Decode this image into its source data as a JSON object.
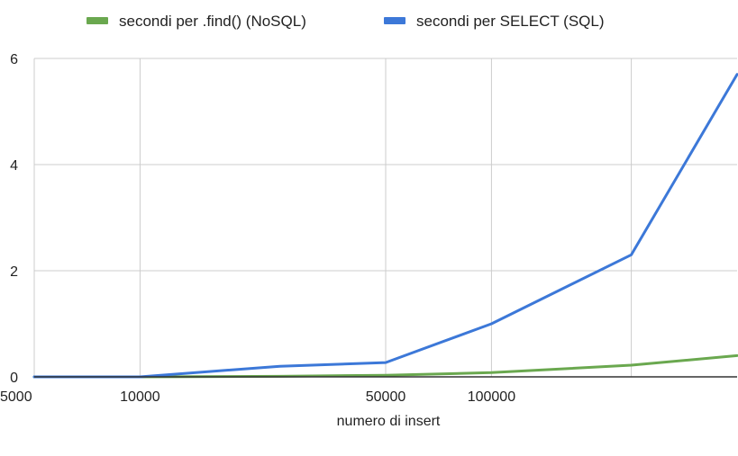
{
  "chart_data": {
    "type": "line",
    "title": "",
    "xlabel": "numero di insert",
    "ylabel": "",
    "x_scale": "log",
    "x": [
      5000,
      10000,
      25000,
      50000,
      100000,
      250000,
      500000
    ],
    "x_tick_labels": [
      {
        "value": 5000,
        "label": "5000"
      },
      {
        "value": 10000,
        "label": "10000"
      },
      {
        "value": 50000,
        "label": "50000"
      },
      {
        "value": 100000,
        "label": "100000"
      }
    ],
    "vertical_gridlines_at": [
      10000,
      50000,
      100000,
      250000
    ],
    "y_ticks": [
      0,
      2,
      4,
      6
    ],
    "ylim": [
      0,
      6
    ],
    "grid": true,
    "legend_position": "top",
    "series": [
      {
        "name": "secondi per .find() (NoSQL)",
        "color": "#6aa84f",
        "values": [
          0.0,
          0.0,
          0.01,
          0.03,
          0.08,
          0.22,
          0.4
        ]
      },
      {
        "name": "secondi per SELECT (SQL)",
        "color": "#3c78d8",
        "values": [
          0.0,
          0.0,
          0.2,
          0.27,
          1.0,
          2.3,
          5.7
        ]
      }
    ]
  }
}
